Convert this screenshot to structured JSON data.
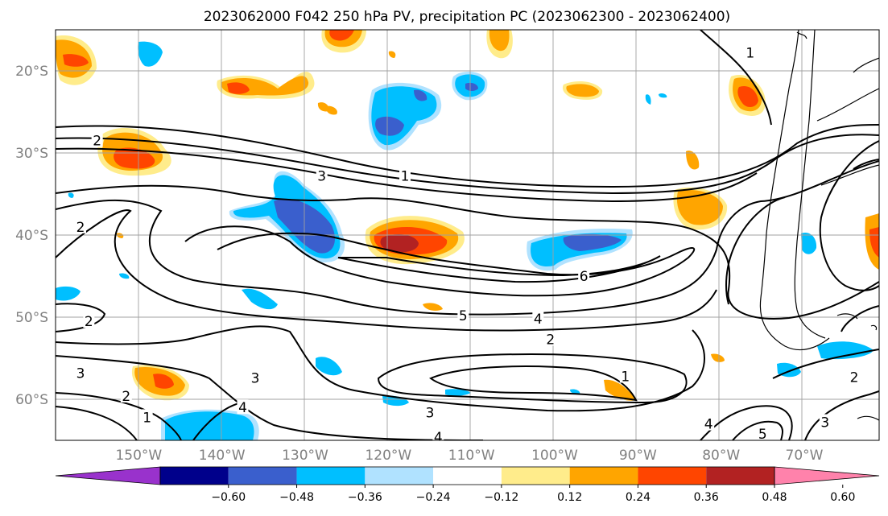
{
  "title": "2023062000 F042 250 hPa PV, precipitation PC (2023062300 - 2023062400)",
  "lon_ticks": [
    {
      "lon": -150,
      "label": "150°W"
    },
    {
      "lon": -140,
      "label": "140°W"
    },
    {
      "lon": -130,
      "label": "130°W"
    },
    {
      "lon": -120,
      "label": "120°W"
    },
    {
      "lon": -110,
      "label": "110°W"
    },
    {
      "lon": -100,
      "label": "100°W"
    },
    {
      "lon": -90,
      "label": "90°W"
    },
    {
      "lon": -80,
      "label": "80°W"
    },
    {
      "lon": -70,
      "label": "70°W"
    }
  ],
  "lat_ticks": [
    {
      "lat": -20,
      "label": "20°S"
    },
    {
      "lat": -30,
      "label": "30°S"
    },
    {
      "lat": -40,
      "label": "40°S"
    },
    {
      "lat": -50,
      "label": "50°S"
    },
    {
      "lat": -60,
      "label": "60°S"
    }
  ],
  "colorbar": {
    "colors": [
      "#9932cc",
      "#00008b",
      "#3a5fcd",
      "#00bfff",
      "#b0e2ff",
      "#ffffff",
      "#ffec8b",
      "#ffa500",
      "#ff4500",
      "#b22222",
      "#ff82ab"
    ],
    "tick_labels": [
      "−0.60",
      "−0.48",
      "−0.36",
      "−0.24",
      "−0.12",
      "0.12",
      "0.24",
      "0.36",
      "0.48",
      "0.60"
    ]
  },
  "contour_labels": [
    {
      "text": "2",
      "lon": -155,
      "lat": -28.5
    },
    {
      "text": "3",
      "lon": -128,
      "lat": -32.8
    },
    {
      "text": "1",
      "lon": -118,
      "lat": -32.8
    },
    {
      "text": "2",
      "lon": -157,
      "lat": -39
    },
    {
      "text": "6",
      "lon": -96.5,
      "lat": -45
    },
    {
      "text": "5",
      "lon": -111,
      "lat": -49.8
    },
    {
      "text": "4",
      "lon": -102,
      "lat": -50.2
    },
    {
      "text": "2",
      "lon": -100.5,
      "lat": -52.7
    },
    {
      "text": "2",
      "lon": -156,
      "lat": -50.5
    },
    {
      "text": "3",
      "lon": -157,
      "lat": -56.8
    },
    {
      "text": "3",
      "lon": -136,
      "lat": -57.4
    },
    {
      "text": "2",
      "lon": -151.5,
      "lat": -59.6
    },
    {
      "text": "1",
      "lon": -149,
      "lat": -62.2
    },
    {
      "text": "4",
      "lon": -137.5,
      "lat": -61
    },
    {
      "text": "3",
      "lon": -115,
      "lat": -61.6
    },
    {
      "text": "1",
      "lon": -91.5,
      "lat": -57.2
    },
    {
      "text": "4",
      "lon": -114,
      "lat": -64.6
    },
    {
      "text": "4",
      "lon": -81.5,
      "lat": -63
    },
    {
      "text": "5",
      "lon": -75,
      "lat": -64.2
    },
    {
      "text": "3",
      "lon": -67.5,
      "lat": -62.8
    },
    {
      "text": "2",
      "lon": -64,
      "lat": -57.3
    },
    {
      "text": "1",
      "lon": -76.5,
      "lat": -17.8
    }
  ]
}
